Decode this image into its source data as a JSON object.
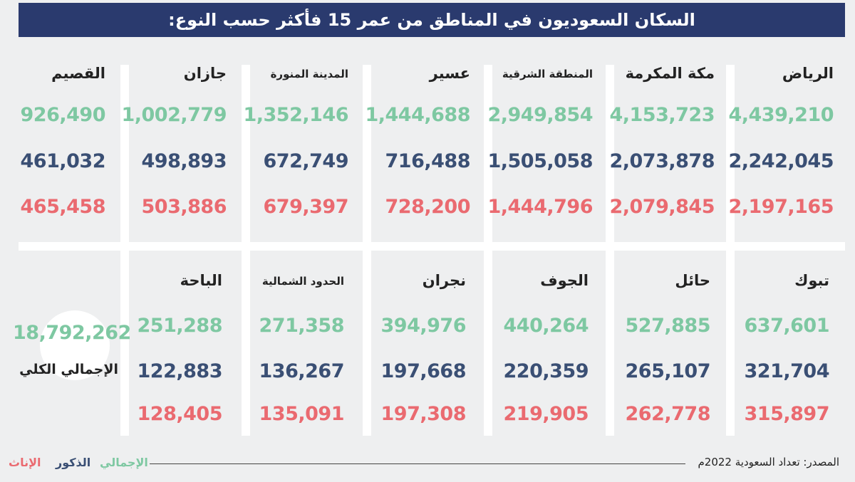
{
  "title": "السكان السعوديون في المناطق من عمر 15 فأكثر حسب النوع:",
  "chart_data": {
    "type": "table",
    "series": [
      {
        "name": "الإجمالي"
      },
      {
        "name": "الذكور"
      },
      {
        "name": "الإناث"
      }
    ],
    "regions": [
      {
        "name": "الرياض",
        "total": "4,439,210",
        "male": "2,242,045",
        "female": "2,197,165"
      },
      {
        "name": "مكة المكرمة",
        "total": "4,153,723",
        "male": "2,073,878",
        "female": "2,079,845"
      },
      {
        "name": "المنطقة الشرقية",
        "total": "2,949,854",
        "male": "1,505,058",
        "female": "1,444,796"
      },
      {
        "name": "عسير",
        "total": "1,444,688",
        "male": "716,488",
        "female": "728,200"
      },
      {
        "name": "المدينة المنورة",
        "total": "1,352,146",
        "male": "672,749",
        "female": "679,397"
      },
      {
        "name": "جازان",
        "total": "1,002,779",
        "male": "498,893",
        "female": "503,886"
      },
      {
        "name": "القصيم",
        "total": "926,490",
        "male": "461,032",
        "female": "465,458"
      },
      {
        "name": "تبوك",
        "total": "637,601",
        "male": "321,704",
        "female": "315,897"
      },
      {
        "name": "حائل",
        "total": "527,885",
        "male": "265,107",
        "female": "262,778"
      },
      {
        "name": "الجوف",
        "total": "440,264",
        "male": "220,359",
        "female": "219,905"
      },
      {
        "name": "نجران",
        "total": "394,976",
        "male": "197,668",
        "female": "197,308"
      },
      {
        "name": "الحدود الشمالية",
        "total": "271,358",
        "male": "136,267",
        "female": "135,091"
      },
      {
        "name": "الباحة",
        "total": "251,288",
        "male": "122,883",
        "female": "128,405"
      }
    ],
    "grand_total": {
      "value": "18,792,262",
      "label": "الإجمالي الكلي"
    }
  },
  "legend": {
    "total": "الإجمالي",
    "male": "الذكور",
    "female": "الإناث"
  },
  "source": "المصدر: تعداد السعودية 2022م",
  "colors": {
    "title_bg": "#2a3a6e",
    "total": "#7ec8a2",
    "male": "#3a4f74",
    "female": "#ea6a70",
    "background": "#eeeff0",
    "separator": "#ffffff"
  }
}
